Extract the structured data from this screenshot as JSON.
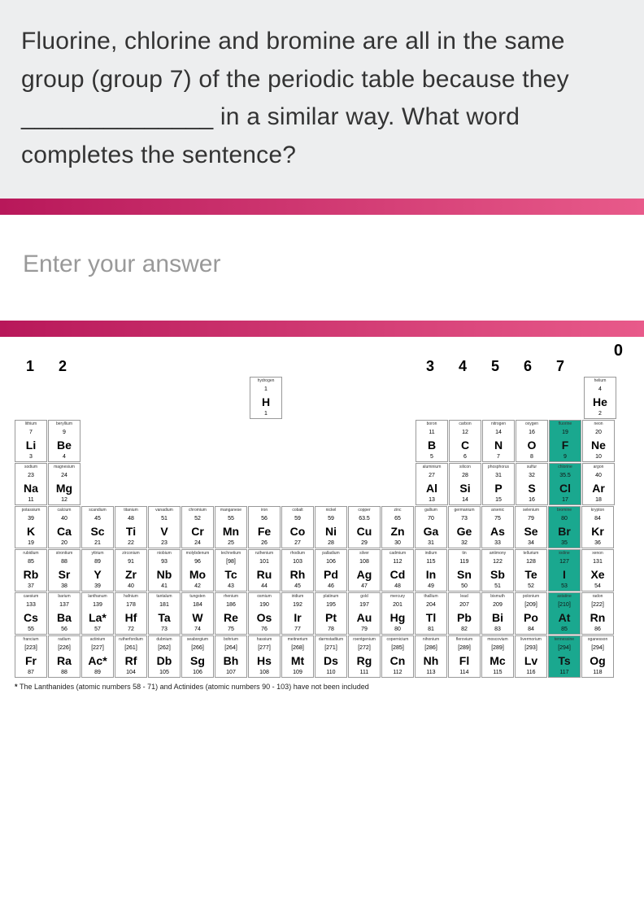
{
  "question": "Fluorine, chlorine and bromine are all in the same group (group 7) of the periodic table because they ______________ in a similar way. What word completes the sentence?",
  "answer_prompt": "Enter your answer",
  "zero_label": "0",
  "group_numbers_left": [
    "1",
    "2"
  ],
  "group_numbers_right": [
    "3",
    "4",
    "5",
    "6",
    "7"
  ],
  "footnote": "The Lanthanides (atomic numbers 58 - 71) and Actinides (atomic numbers 90 - 103) have not been included",
  "divider_gradient_start": "#b8185a",
  "divider_gradient_end": "#e85a8a",
  "highlight_color": "#1aa88f",
  "pt": {
    "r1": [
      {
        "name": "hydrogen",
        "mass": "1",
        "sym": "H",
        "num": "1"
      },
      {
        "name": "helium",
        "mass": "4",
        "sym": "He",
        "num": "2"
      }
    ],
    "r2": [
      {
        "name": "lithium",
        "mass": "7",
        "sym": "Li",
        "num": "3"
      },
      {
        "name": "beryllium",
        "mass": "9",
        "sym": "Be",
        "num": "4"
      },
      {
        "name": "boron",
        "mass": "11",
        "sym": "B",
        "num": "5"
      },
      {
        "name": "carbon",
        "mass": "12",
        "sym": "C",
        "num": "6"
      },
      {
        "name": "nitrogen",
        "mass": "14",
        "sym": "N",
        "num": "7"
      },
      {
        "name": "oxygen",
        "mass": "16",
        "sym": "O",
        "num": "8"
      },
      {
        "name": "fluorine",
        "mass": "19",
        "sym": "F",
        "num": "9",
        "hl": true
      },
      {
        "name": "neon",
        "mass": "20",
        "sym": "Ne",
        "num": "10"
      }
    ],
    "r3": [
      {
        "name": "sodium",
        "mass": "23",
        "sym": "Na",
        "num": "11"
      },
      {
        "name": "magnesium",
        "mass": "24",
        "sym": "Mg",
        "num": "12"
      },
      {
        "name": "aluminium",
        "mass": "27",
        "sym": "Al",
        "num": "13"
      },
      {
        "name": "silicon",
        "mass": "28",
        "sym": "Si",
        "num": "14"
      },
      {
        "name": "phosphorus",
        "mass": "31",
        "sym": "P",
        "num": "15"
      },
      {
        "name": "sulfur",
        "mass": "32",
        "sym": "S",
        "num": "16"
      },
      {
        "name": "chlorine",
        "mass": "35.5",
        "sym": "Cl",
        "num": "17",
        "hl": true
      },
      {
        "name": "argon",
        "mass": "40",
        "sym": "Ar",
        "num": "18"
      }
    ],
    "r4": [
      {
        "name": "potassium",
        "mass": "39",
        "sym": "K",
        "num": "19"
      },
      {
        "name": "calcium",
        "mass": "40",
        "sym": "Ca",
        "num": "20"
      },
      {
        "name": "scandium",
        "mass": "45",
        "sym": "Sc",
        "num": "21"
      },
      {
        "name": "titanium",
        "mass": "48",
        "sym": "Ti",
        "num": "22"
      },
      {
        "name": "vanadium",
        "mass": "51",
        "sym": "V",
        "num": "23"
      },
      {
        "name": "chromium",
        "mass": "52",
        "sym": "Cr",
        "num": "24"
      },
      {
        "name": "manganese",
        "mass": "55",
        "sym": "Mn",
        "num": "25"
      },
      {
        "name": "iron",
        "mass": "56",
        "sym": "Fe",
        "num": "26"
      },
      {
        "name": "cobalt",
        "mass": "59",
        "sym": "Co",
        "num": "27"
      },
      {
        "name": "nickel",
        "mass": "59",
        "sym": "Ni",
        "num": "28"
      },
      {
        "name": "copper",
        "mass": "63.5",
        "sym": "Cu",
        "num": "29"
      },
      {
        "name": "zinc",
        "mass": "65",
        "sym": "Zn",
        "num": "30"
      },
      {
        "name": "gallium",
        "mass": "70",
        "sym": "Ga",
        "num": "31"
      },
      {
        "name": "germanium",
        "mass": "73",
        "sym": "Ge",
        "num": "32"
      },
      {
        "name": "arsenic",
        "mass": "75",
        "sym": "As",
        "num": "33"
      },
      {
        "name": "selenium",
        "mass": "79",
        "sym": "Se",
        "num": "34"
      },
      {
        "name": "bromine",
        "mass": "80",
        "sym": "Br",
        "num": "35",
        "hl": true
      },
      {
        "name": "krypton",
        "mass": "84",
        "sym": "Kr",
        "num": "36"
      }
    ],
    "r5": [
      {
        "name": "rubidium",
        "mass": "85",
        "sym": "Rb",
        "num": "37"
      },
      {
        "name": "strontium",
        "mass": "88",
        "sym": "Sr",
        "num": "38"
      },
      {
        "name": "yttrium",
        "mass": "89",
        "sym": "Y",
        "num": "39"
      },
      {
        "name": "zirconium",
        "mass": "91",
        "sym": "Zr",
        "num": "40"
      },
      {
        "name": "niobium",
        "mass": "93",
        "sym": "Nb",
        "num": "41"
      },
      {
        "name": "molybdenum",
        "mass": "96",
        "sym": "Mo",
        "num": "42"
      },
      {
        "name": "technetium",
        "mass": "[98]",
        "sym": "Tc",
        "num": "43"
      },
      {
        "name": "ruthenium",
        "mass": "101",
        "sym": "Ru",
        "num": "44"
      },
      {
        "name": "rhodium",
        "mass": "103",
        "sym": "Rh",
        "num": "45"
      },
      {
        "name": "palladium",
        "mass": "106",
        "sym": "Pd",
        "num": "46"
      },
      {
        "name": "silver",
        "mass": "108",
        "sym": "Ag",
        "num": "47"
      },
      {
        "name": "cadmium",
        "mass": "112",
        "sym": "Cd",
        "num": "48"
      },
      {
        "name": "indium",
        "mass": "115",
        "sym": "In",
        "num": "49"
      },
      {
        "name": "tin",
        "mass": "119",
        "sym": "Sn",
        "num": "50"
      },
      {
        "name": "antimony",
        "mass": "122",
        "sym": "Sb",
        "num": "51"
      },
      {
        "name": "tellurium",
        "mass": "128",
        "sym": "Te",
        "num": "52"
      },
      {
        "name": "iodine",
        "mass": "127",
        "sym": "I",
        "num": "53",
        "hl": true
      },
      {
        "name": "xenon",
        "mass": "131",
        "sym": "Xe",
        "num": "54"
      }
    ],
    "r6": [
      {
        "name": "caesium",
        "mass": "133",
        "sym": "Cs",
        "num": "55"
      },
      {
        "name": "barium",
        "mass": "137",
        "sym": "Ba",
        "num": "56"
      },
      {
        "name": "lanthanum",
        "mass": "139",
        "sym": "La*",
        "num": "57"
      },
      {
        "name": "hafnium",
        "mass": "178",
        "sym": "Hf",
        "num": "72"
      },
      {
        "name": "tantalum",
        "mass": "181",
        "sym": "Ta",
        "num": "73"
      },
      {
        "name": "tungsten",
        "mass": "184",
        "sym": "W",
        "num": "74"
      },
      {
        "name": "rhenium",
        "mass": "186",
        "sym": "Re",
        "num": "75"
      },
      {
        "name": "osmium",
        "mass": "190",
        "sym": "Os",
        "num": "76"
      },
      {
        "name": "iridium",
        "mass": "192",
        "sym": "Ir",
        "num": "77"
      },
      {
        "name": "platinum",
        "mass": "195",
        "sym": "Pt",
        "num": "78"
      },
      {
        "name": "gold",
        "mass": "197",
        "sym": "Au",
        "num": "79"
      },
      {
        "name": "mercury",
        "mass": "201",
        "sym": "Hg",
        "num": "80"
      },
      {
        "name": "thallium",
        "mass": "204",
        "sym": "Tl",
        "num": "81"
      },
      {
        "name": "lead",
        "mass": "207",
        "sym": "Pb",
        "num": "82"
      },
      {
        "name": "bismuth",
        "mass": "209",
        "sym": "Bi",
        "num": "83"
      },
      {
        "name": "polonium",
        "mass": "[209]",
        "sym": "Po",
        "num": "84"
      },
      {
        "name": "astatine",
        "mass": "[210]",
        "sym": "At",
        "num": "85",
        "hl": true
      },
      {
        "name": "radon",
        "mass": "[222]",
        "sym": "Rn",
        "num": "86"
      }
    ],
    "r7": [
      {
        "name": "francium",
        "mass": "[223]",
        "sym": "Fr",
        "num": "87"
      },
      {
        "name": "radium",
        "mass": "[226]",
        "sym": "Ra",
        "num": "88"
      },
      {
        "name": "actinium",
        "mass": "[227]",
        "sym": "Ac*",
        "num": "89"
      },
      {
        "name": "rutherfordium",
        "mass": "[261]",
        "sym": "Rf",
        "num": "104"
      },
      {
        "name": "dubnium",
        "mass": "[262]",
        "sym": "Db",
        "num": "105"
      },
      {
        "name": "seaborgium",
        "mass": "[266]",
        "sym": "Sg",
        "num": "106"
      },
      {
        "name": "bohrium",
        "mass": "[264]",
        "sym": "Bh",
        "num": "107"
      },
      {
        "name": "hassium",
        "mass": "[277]",
        "sym": "Hs",
        "num": "108"
      },
      {
        "name": "meitnerium",
        "mass": "[268]",
        "sym": "Mt",
        "num": "109"
      },
      {
        "name": "darmstadtium",
        "mass": "[271]",
        "sym": "Ds",
        "num": "110"
      },
      {
        "name": "roentgenium",
        "mass": "[272]",
        "sym": "Rg",
        "num": "111"
      },
      {
        "name": "copernicium",
        "mass": "[285]",
        "sym": "Cn",
        "num": "112"
      },
      {
        "name": "nihonium",
        "mass": "[286]",
        "sym": "Nh",
        "num": "113"
      },
      {
        "name": "flerovium",
        "mass": "[289]",
        "sym": "Fl",
        "num": "114"
      },
      {
        "name": "moscovium",
        "mass": "[289]",
        "sym": "Mc",
        "num": "115"
      },
      {
        "name": "livermorium",
        "mass": "[293]",
        "sym": "Lv",
        "num": "116"
      },
      {
        "name": "tennessine",
        "mass": "[294]",
        "sym": "Ts",
        "num": "117",
        "hl": true
      },
      {
        "name": "oganesson",
        "mass": "[294]",
        "sym": "Og",
        "num": "118"
      }
    ]
  }
}
